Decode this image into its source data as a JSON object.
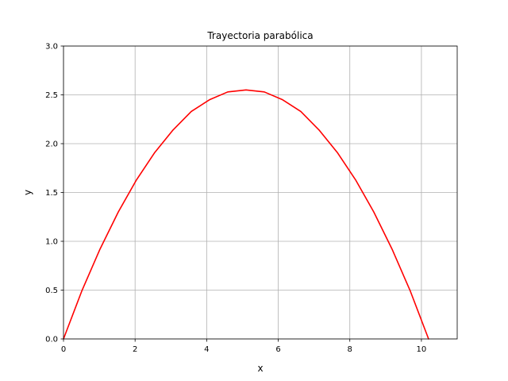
{
  "chart_data": {
    "type": "line",
    "title": "Trayectoria parabólica",
    "xlabel": "x",
    "ylabel": "y",
    "xlim": [
      0,
      11
    ],
    "ylim": [
      0,
      3.0
    ],
    "xticks": [
      0,
      2,
      4,
      6,
      8,
      10
    ],
    "yticks": [
      0.0,
      0.5,
      1.0,
      1.5,
      2.0,
      2.5,
      3.0
    ],
    "xtick_labels": [
      "0",
      "2",
      "4",
      "6",
      "8",
      "10"
    ],
    "ytick_labels": [
      "0.0",
      "0.5",
      "1.0",
      "1.5",
      "2.0",
      "2.5",
      "3.0"
    ],
    "grid": true,
    "series": [
      {
        "color": "#ff0000",
        "x": [
          0,
          0.51,
          1.02,
          1.53,
          2.04,
          2.55,
          3.06,
          3.57,
          4.08,
          4.59,
          5.1,
          5.61,
          6.12,
          6.63,
          7.14,
          7.65,
          8.16,
          8.67,
          9.18,
          9.69,
          10.2
        ],
        "y": [
          0,
          0.49,
          0.92,
          1.3,
          1.63,
          1.91,
          2.14,
          2.33,
          2.45,
          2.53,
          2.55,
          2.53,
          2.45,
          2.33,
          2.14,
          1.91,
          1.63,
          1.3,
          0.92,
          0.49,
          0
        ]
      }
    ]
  }
}
